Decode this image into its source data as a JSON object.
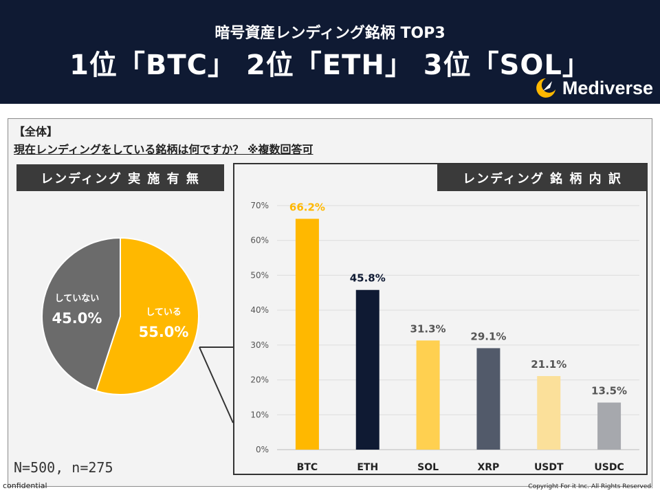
{
  "header": {
    "subtitle": "暗号資産レンディング銘柄 TOP3",
    "title": "1位「BTC」 2位「ETH」 3位「SOL」",
    "logo_text": "Mediverse"
  },
  "question": {
    "heading": "【全体】",
    "text": "現在レンディングをしている銘柄は何ですか？ ※複数回答可"
  },
  "left_label": "レンディング 実 施 有 無",
  "right_label": "レンディング 銘 柄 内 訳",
  "sample": "N=500, n=275",
  "confidential": "confidential",
  "copyright": "Copyright For it Inc. All Rights Reserved.",
  "colors": {
    "header_bg": "#0f1a33",
    "yes": "#ffb800",
    "no": "#6b6b6b",
    "btc": "#ffb800",
    "eth": "#0f1a33",
    "sol": "#ffd050",
    "xrp": "#525a6a",
    "usdt": "#fbe09a",
    "usdc": "#a6a8ad"
  },
  "chart_data": [
    {
      "type": "pie",
      "title": "レンディング 実施有無",
      "slices": [
        {
          "label": "している",
          "value": 55.0,
          "display": "55.0%"
        },
        {
          "label": "していない",
          "value": 45.0,
          "display": "45.0%"
        }
      ]
    },
    {
      "type": "bar",
      "title": "レンディング 銘柄内訳",
      "categories": [
        "BTC",
        "ETH",
        "SOL",
        "XRP",
        "USDT",
        "USDC"
      ],
      "values": [
        66.2,
        45.8,
        31.3,
        29.1,
        21.1,
        13.5
      ],
      "value_labels": [
        "66.2%",
        "45.8%",
        "31.3%",
        "29.1%",
        "21.1%",
        "13.5%"
      ],
      "yticks": [
        "0%",
        "10%",
        "20%",
        "30%",
        "40%",
        "50%",
        "60%",
        "70%"
      ],
      "ylim": [
        0,
        70
      ],
      "xlabel": "",
      "ylabel": "",
      "grid": true
    }
  ]
}
